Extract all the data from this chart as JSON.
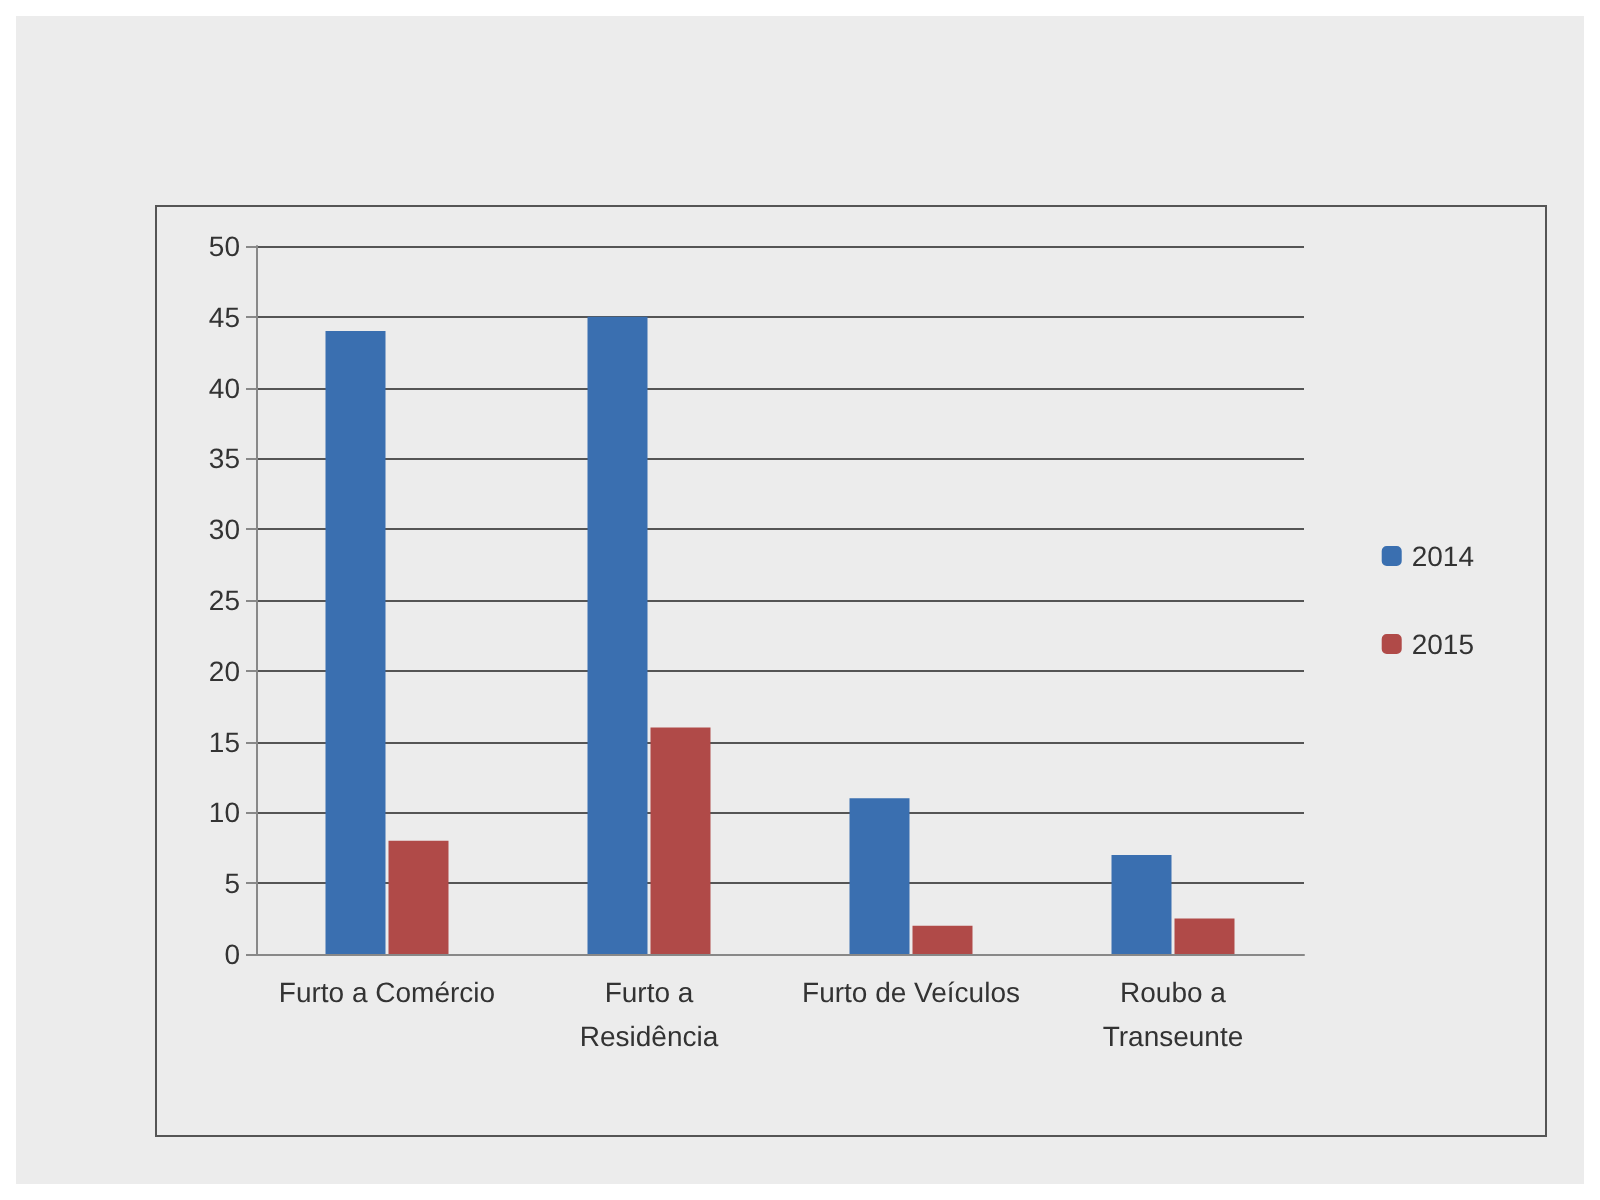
{
  "chart_data": {
    "type": "bar",
    "categories": [
      "Furto a Comércio",
      "Furto a\nResidência",
      "Furto de Veículos",
      "Roubo a\nTranseunte"
    ],
    "series": [
      {
        "name": "2014",
        "color": "#3a6fb0",
        "values": [
          44,
          45,
          11,
          7
        ]
      },
      {
        "name": "2015",
        "color": "#b04a48",
        "values": [
          8,
          16,
          2,
          2.5
        ]
      }
    ],
    "ylim": [
      0,
      50
    ],
    "yticks": [
      0,
      5,
      10,
      15,
      20,
      25,
      30,
      35,
      40,
      45,
      50
    ],
    "grid": "y",
    "legend": "right"
  }
}
